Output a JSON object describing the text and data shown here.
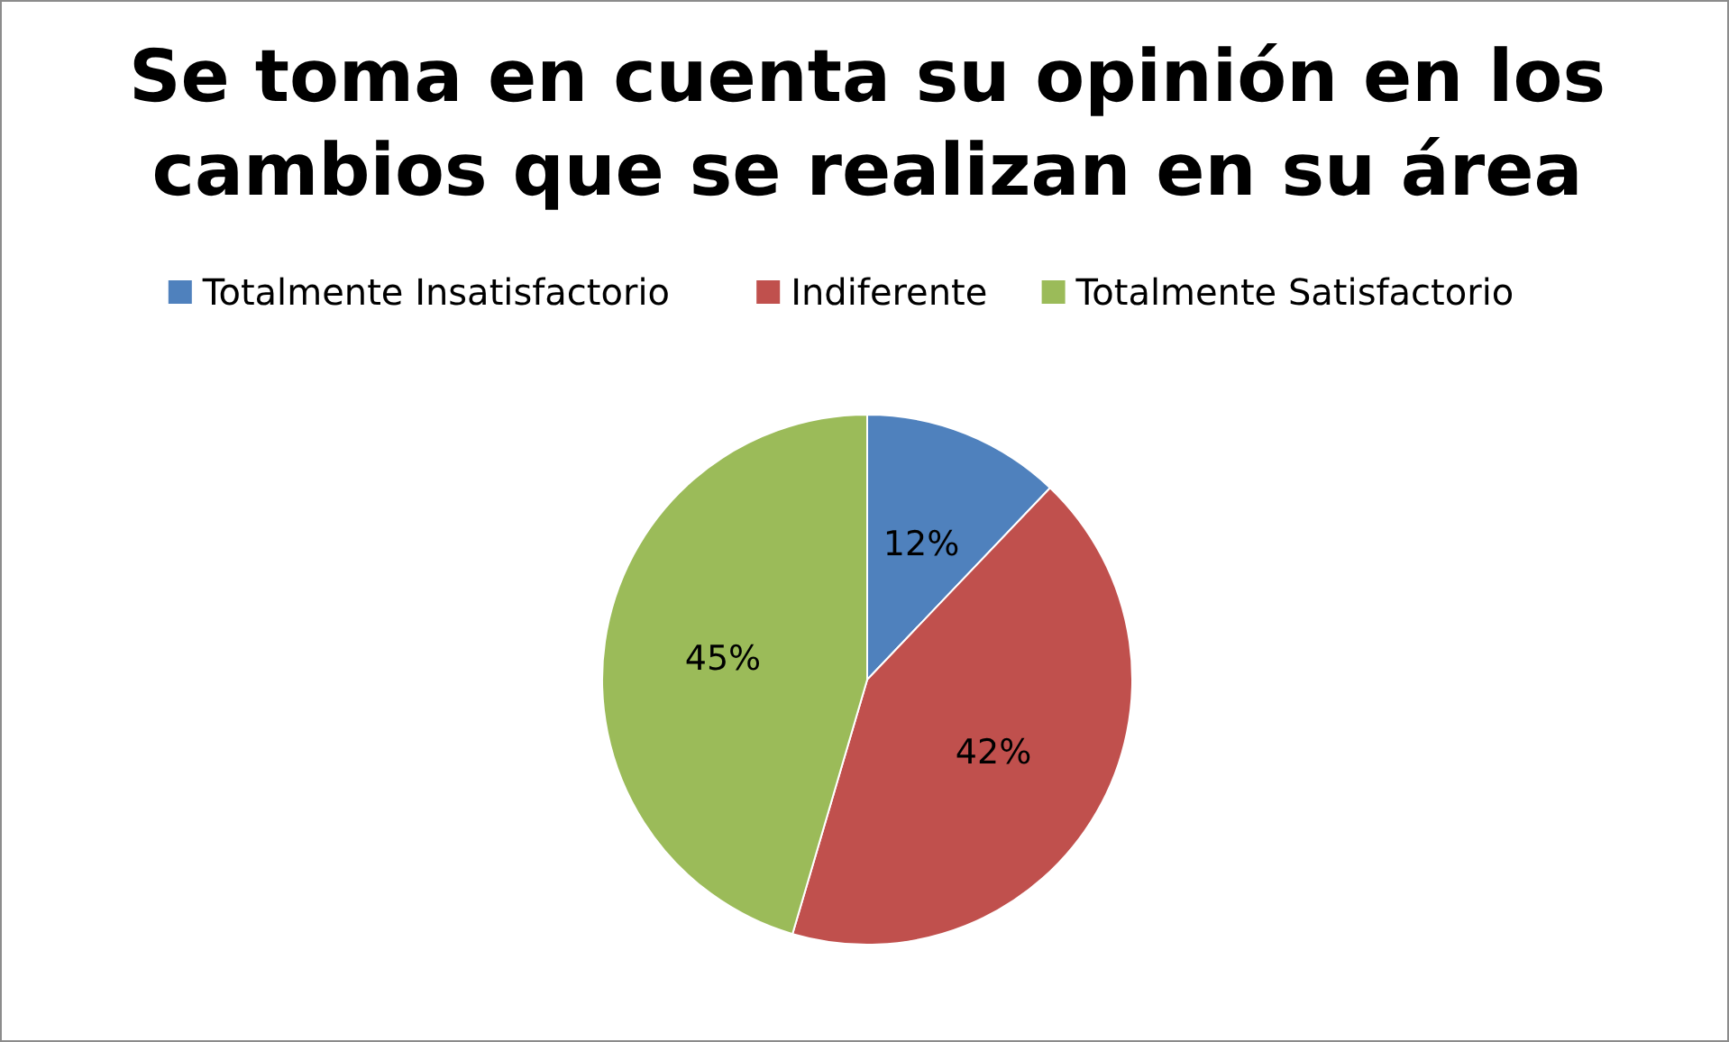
{
  "chart_data": {
    "type": "pie",
    "title": "Se toma en cuenta su opinión en los cambios que se realizan en su área",
    "categories": [
      "Totalmente Insatisfactorio",
      "Indiferente",
      "Totalmente Satisfactorio"
    ],
    "values": [
      12,
      42,
      45
    ],
    "colors": [
      "#4f81bd",
      "#c0504d",
      "#9bbb59"
    ],
    "value_labels": [
      "12%",
      "42%",
      "45%"
    ],
    "legend": "top"
  }
}
